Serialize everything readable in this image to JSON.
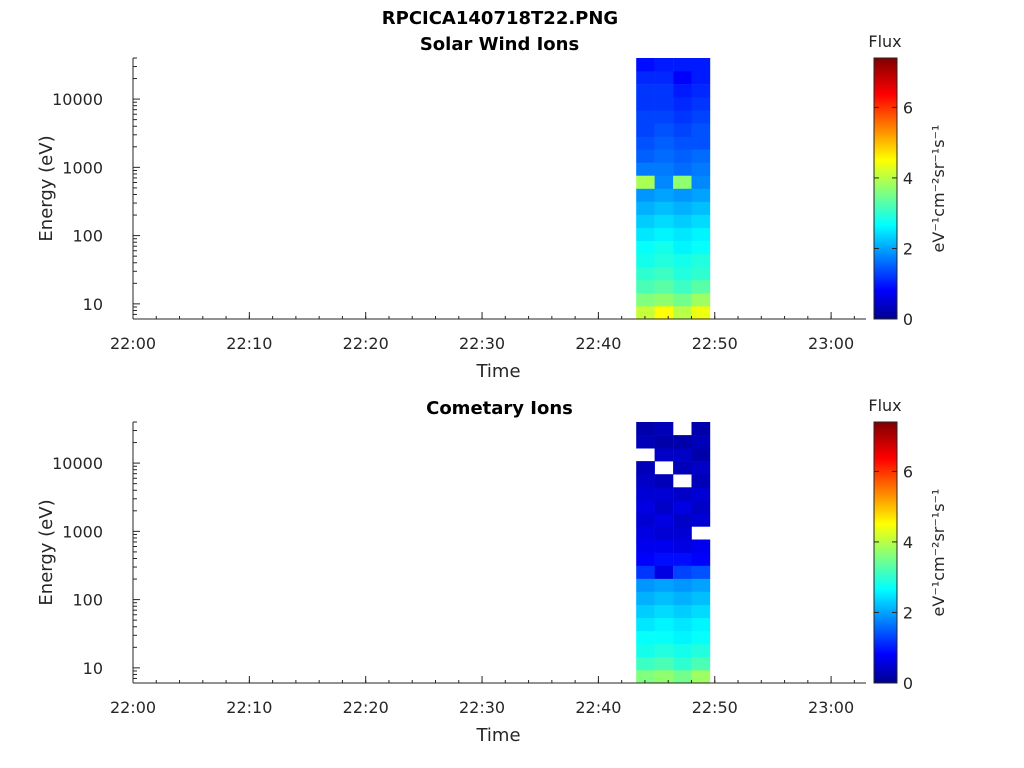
{
  "figure": {
    "title": "RPCICA140718T22.PNG"
  },
  "colorbar": {
    "title": "Flux",
    "label": "eV⁻¹cm⁻²sr⁻¹s⁻¹",
    "min": 0,
    "max": 7.4,
    "ticks": [
      0,
      2,
      4,
      6
    ]
  },
  "chart_data": [
    {
      "type": "heatmap",
      "title": "Solar Wind Ions",
      "xlabel": "Time",
      "ylabel": "Energy (eV)",
      "y_scale": "log",
      "xlim": [
        "22:00",
        "23:03"
      ],
      "ylim": [
        6,
        40000
      ],
      "x_ticks": [
        "22:00",
        "22:10",
        "22:20",
        "22:30",
        "22:40",
        "22:50",
        "23:00"
      ],
      "y_ticks": [
        "10",
        "100",
        "1000",
        "10000"
      ],
      "y_tick_values": [
        10,
        100,
        1000,
        10000
      ],
      "columns": [
        "22:43:15",
        "22:44:50",
        "22:46:25",
        "22:48:00"
      ],
      "column_end": "22:49:35",
      "flux_by_column": [
        [
          4.1,
          3.6,
          3.2,
          3.0,
          2.8,
          2.7,
          2.5,
          2.3,
          2.1,
          1.9,
          3.9,
          1.7,
          1.5,
          1.4,
          1.3,
          1.3,
          1.2,
          1.2,
          1.1,
          0.9
        ],
        [
          4.5,
          3.7,
          3.3,
          3.1,
          2.9,
          2.8,
          2.6,
          2.4,
          2.2,
          2.0,
          1.8,
          1.7,
          1.6,
          1.5,
          1.4,
          1.3,
          1.2,
          1.2,
          1.1,
          1.0
        ],
        [
          4.0,
          3.5,
          3.1,
          2.9,
          2.8,
          2.6,
          2.5,
          2.3,
          2.1,
          1.9,
          3.7,
          1.6,
          1.5,
          1.4,
          1.3,
          1.2,
          1.1,
          1.0,
          0.8,
          1.0
        ],
        [
          4.4,
          3.8,
          3.3,
          3.0,
          2.9,
          2.7,
          2.6,
          2.4,
          2.2,
          2.0,
          1.8,
          1.7,
          1.6,
          1.4,
          1.4,
          1.3,
          1.2,
          1.1,
          1.0,
          1.0
        ]
      ]
    },
    {
      "type": "heatmap",
      "title": "Cometary Ions",
      "xlabel": "Time",
      "ylabel": "Energy (eV)",
      "y_scale": "log",
      "xlim": [
        "22:00",
        "23:03"
      ],
      "ylim": [
        6,
        40000
      ],
      "x_ticks": [
        "22:00",
        "22:10",
        "22:20",
        "22:30",
        "22:40",
        "22:50",
        "23:00"
      ],
      "y_ticks": [
        "10",
        "100",
        "1000",
        "10000"
      ],
      "y_tick_values": [
        10,
        100,
        1000,
        10000
      ],
      "columns": [
        "22:43:15",
        "22:44:50",
        "22:46:25",
        "22:48:00"
      ],
      "column_end": "22:49:35",
      "flux_by_column": [
        [
          3.6,
          3.1,
          2.8,
          2.7,
          2.5,
          2.3,
          2.1,
          1.9,
          1.2,
          0.8,
          0.7,
          0.6,
          0.5,
          0.6,
          0.5,
          0.4,
          0.3,
          null,
          0.3,
          0.2
        ],
        [
          3.7,
          3.2,
          2.9,
          2.7,
          2.6,
          2.4,
          2.2,
          2.0,
          0.6,
          0.9,
          0.7,
          0.5,
          0.6,
          0.4,
          0.5,
          0.3,
          null,
          0.4,
          0.2,
          0.3
        ],
        [
          3.5,
          3.0,
          2.8,
          2.6,
          2.5,
          2.3,
          2.1,
          1.9,
          1.3,
          0.9,
          0.6,
          0.5,
          0.4,
          0.6,
          0.4,
          null,
          0.3,
          0.4,
          0.2,
          null
        ],
        [
          3.8,
          3.2,
          2.9,
          2.7,
          2.6,
          2.4,
          2.2,
          2.0,
          1.4,
          0.8,
          0.7,
          null,
          0.5,
          0.4,
          0.5,
          0.3,
          0.4,
          0.2,
          0.3,
          0.2
        ]
      ]
    }
  ]
}
